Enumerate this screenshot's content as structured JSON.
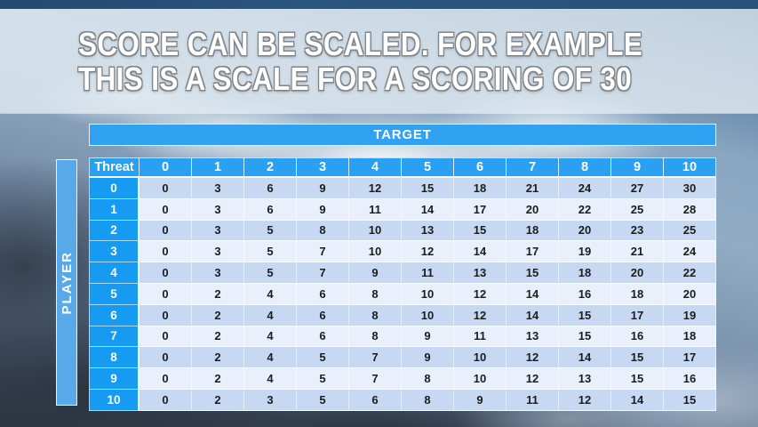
{
  "slide": {
    "title_line1": "SCORE CAN BE SCALED. FOR EXAMPLE",
    "title_line2": "THIS IS A SCALE FOR A SCORING OF 30"
  },
  "table": {
    "target_label": "TARGET",
    "player_label": "PLAYER",
    "corner_label": "Threat",
    "column_headers": [
      "0",
      "1",
      "2",
      "3",
      "4",
      "5",
      "6",
      "7",
      "8",
      "9",
      "10"
    ],
    "rows": [
      {
        "threat": "0",
        "values": [
          0,
          3,
          6,
          9,
          12,
          15,
          18,
          21,
          24,
          27,
          30
        ]
      },
      {
        "threat": "1",
        "values": [
          0,
          3,
          6,
          9,
          11,
          14,
          17,
          20,
          22,
          25,
          28
        ]
      },
      {
        "threat": "2",
        "values": [
          0,
          3,
          5,
          8,
          10,
          13,
          15,
          18,
          20,
          23,
          25
        ]
      },
      {
        "threat": "3",
        "values": [
          0,
          3,
          5,
          7,
          10,
          12,
          14,
          17,
          19,
          21,
          24
        ]
      },
      {
        "threat": "4",
        "values": [
          0,
          3,
          5,
          7,
          9,
          11,
          13,
          15,
          18,
          20,
          22
        ]
      },
      {
        "threat": "5",
        "values": [
          0,
          2,
          4,
          6,
          8,
          10,
          12,
          14,
          16,
          18,
          20
        ]
      },
      {
        "threat": "6",
        "values": [
          0,
          2,
          4,
          6,
          8,
          10,
          12,
          14,
          15,
          17,
          19
        ]
      },
      {
        "threat": "7",
        "values": [
          0,
          2,
          4,
          6,
          8,
          9,
          11,
          13,
          15,
          16,
          18
        ]
      },
      {
        "threat": "8",
        "values": [
          0,
          2,
          4,
          5,
          7,
          9,
          10,
          12,
          14,
          15,
          17
        ]
      },
      {
        "threat": "9",
        "values": [
          0,
          2,
          4,
          5,
          7,
          8,
          10,
          12,
          13,
          15,
          16
        ]
      },
      {
        "threat": "10",
        "values": [
          0,
          2,
          3,
          5,
          6,
          8,
          9,
          11,
          12,
          14,
          15
        ]
      }
    ]
  },
  "colors": {
    "header_blue": "#2aa0f2",
    "row_label_blue": "#169bf3",
    "player_bar_blue": "#58a9e9",
    "band_dark": "#c7d9f2",
    "band_light": "#e9f0fb",
    "title_text": "#ffffff",
    "title_outline": "#818487",
    "cell_text": "#1c1c1c"
  }
}
